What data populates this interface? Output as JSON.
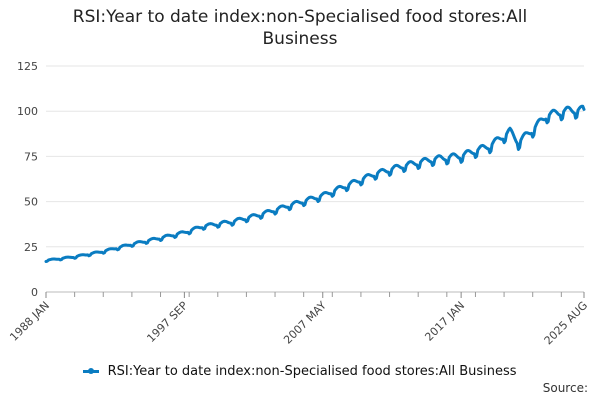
{
  "chart_data": {
    "type": "line",
    "title_line1": "RSI:Year to date index:non-Specialised food stores:All",
    "title_line2": "Business",
    "xlabel": "",
    "ylabel": "",
    "ylim": [
      0,
      125
    ],
    "yticks": [
      "0",
      "25",
      "50",
      "75",
      "100",
      "125"
    ],
    "xtick_labels": [
      "1988 JAN",
      "1997 SEP",
      "2007 MAY",
      "2017 JAN",
      "2025 AUG"
    ],
    "xlim": [
      "1988-01",
      "2025-08"
    ],
    "grid": "horizontal",
    "legend_position": "bottom",
    "series": [
      {
        "name": "RSI:Year to date index:non-Specialised food stores:All Business",
        "color": "#0a7cc1",
        "points": [
          [
            "1988-01",
            17.5
          ],
          [
            "1990-01",
            19.5
          ],
          [
            "1992-01",
            22.5
          ],
          [
            "1994-01",
            26.5
          ],
          [
            "1996-01",
            30.0
          ],
          [
            "1997-09",
            33.0
          ],
          [
            "1999-01",
            36.5
          ],
          [
            "2001-01",
            39.0
          ],
          [
            "2003-01",
            43.0
          ],
          [
            "2005-01",
            48.0
          ],
          [
            "2007-05",
            53.5
          ],
          [
            "2009-01",
            59.0
          ],
          [
            "2011-01",
            65.5
          ],
          [
            "2013-01",
            70.0
          ],
          [
            "2015-01",
            73.5
          ],
          [
            "2017-01",
            75.5
          ],
          [
            "2019-01",
            81.0
          ],
          [
            "2020-06",
            89.0
          ],
          [
            "2021-01",
            83.0
          ],
          [
            "2022-01",
            90.0
          ],
          [
            "2023-01",
            98.0
          ],
          [
            "2024-06",
            100.5
          ],
          [
            "2025-08",
            101.0
          ]
        ]
      }
    ]
  },
  "source_label": "Source:"
}
